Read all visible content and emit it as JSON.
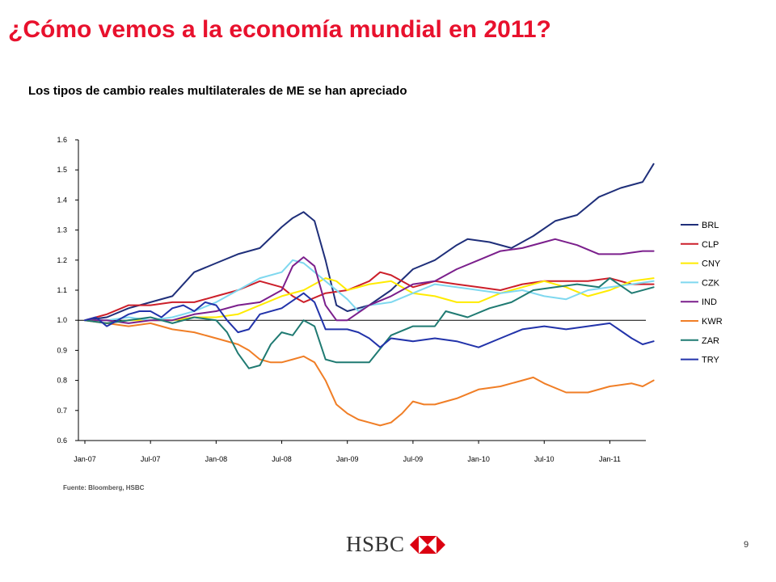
{
  "slide": {
    "title": "¿Cómo vemos a la economía mundial en 2011?",
    "subtitle": "Los tipos de cambio reales multilaterales de ME se han apreciado",
    "source": "Fuente: Bloomberg, HSBC",
    "page_number": "9",
    "logo_text": "HSBC",
    "title_color": "#e8112d"
  },
  "chart_data": {
    "type": "line",
    "title": "",
    "xlabel": "",
    "ylabel": "",
    "ylim": [
      0.6,
      1.6
    ],
    "yticks": [
      "0.6",
      "0.7",
      "0.8",
      "0.9",
      "1.0",
      "1.1",
      "1.2",
      "1.3",
      "1.4",
      "1.5",
      "1.6"
    ],
    "xticks": [
      "Jan-07",
      "Jul-07",
      "Jan-08",
      "Jul-08",
      "Jan-09",
      "Jul-09",
      "Jan-10",
      "Jul-10",
      "Jan-11"
    ],
    "x_range_months": [
      0,
      52
    ],
    "legend_position": "right",
    "series": [
      {
        "name": "BRL",
        "color": "#1f2f7a",
        "points": [
          [
            0,
            1.0
          ],
          [
            2,
            1.01
          ],
          [
            4,
            1.04
          ],
          [
            6,
            1.06
          ],
          [
            8,
            1.08
          ],
          [
            10,
            1.16
          ],
          [
            12,
            1.19
          ],
          [
            14,
            1.22
          ],
          [
            16,
            1.24
          ],
          [
            18,
            1.31
          ],
          [
            19,
            1.34
          ],
          [
            20,
            1.36
          ],
          [
            21,
            1.33
          ],
          [
            22,
            1.2
          ],
          [
            23,
            1.05
          ],
          [
            24,
            1.03
          ],
          [
            26,
            1.05
          ],
          [
            28,
            1.1
          ],
          [
            30,
            1.17
          ],
          [
            32,
            1.2
          ],
          [
            34,
            1.25
          ],
          [
            35,
            1.27
          ],
          [
            37,
            1.26
          ],
          [
            39,
            1.24
          ],
          [
            41,
            1.28
          ],
          [
            43,
            1.33
          ],
          [
            45,
            1.35
          ],
          [
            47,
            1.41
          ],
          [
            49,
            1.44
          ],
          [
            51,
            1.46
          ],
          [
            52,
            1.52
          ]
        ]
      },
      {
        "name": "CLP",
        "color": "#cc1f2a",
        "points": [
          [
            0,
            1.0
          ],
          [
            2,
            1.02
          ],
          [
            4,
            1.05
          ],
          [
            6,
            1.05
          ],
          [
            8,
            1.06
          ],
          [
            10,
            1.06
          ],
          [
            12,
            1.08
          ],
          [
            14,
            1.1
          ],
          [
            16,
            1.13
          ],
          [
            18,
            1.11
          ],
          [
            19,
            1.08
          ],
          [
            20,
            1.06
          ],
          [
            22,
            1.09
          ],
          [
            24,
            1.1
          ],
          [
            26,
            1.13
          ],
          [
            27,
            1.16
          ],
          [
            28,
            1.15
          ],
          [
            30,
            1.11
          ],
          [
            32,
            1.13
          ],
          [
            34,
            1.12
          ],
          [
            36,
            1.11
          ],
          [
            38,
            1.1
          ],
          [
            40,
            1.12
          ],
          [
            42,
            1.13
          ],
          [
            44,
            1.13
          ],
          [
            46,
            1.13
          ],
          [
            48,
            1.14
          ],
          [
            50,
            1.12
          ],
          [
            52,
            1.12
          ]
        ]
      },
      {
        "name": "CNY",
        "color": "#ffeb00",
        "points": [
          [
            0,
            1.0
          ],
          [
            2,
            0.99
          ],
          [
            4,
            1.0
          ],
          [
            6,
            1.0
          ],
          [
            8,
            1.0
          ],
          [
            10,
            1.01
          ],
          [
            12,
            1.01
          ],
          [
            14,
            1.02
          ],
          [
            16,
            1.05
          ],
          [
            18,
            1.08
          ],
          [
            20,
            1.1
          ],
          [
            22,
            1.14
          ],
          [
            23,
            1.13
          ],
          [
            24,
            1.1
          ],
          [
            26,
            1.12
          ],
          [
            28,
            1.13
          ],
          [
            30,
            1.09
          ],
          [
            32,
            1.08
          ],
          [
            34,
            1.06
          ],
          [
            36,
            1.06
          ],
          [
            38,
            1.09
          ],
          [
            40,
            1.11
          ],
          [
            42,
            1.13
          ],
          [
            44,
            1.11
          ],
          [
            46,
            1.08
          ],
          [
            48,
            1.1
          ],
          [
            50,
            1.13
          ],
          [
            52,
            1.14
          ]
        ]
      },
      {
        "name": "CZK",
        "color": "#7fd8ef",
        "points": [
          [
            0,
            1.0
          ],
          [
            2,
            1.0
          ],
          [
            4,
            1.01
          ],
          [
            6,
            1.0
          ],
          [
            8,
            1.01
          ],
          [
            10,
            1.03
          ],
          [
            12,
            1.06
          ],
          [
            14,
            1.1
          ],
          [
            16,
            1.14
          ],
          [
            18,
            1.16
          ],
          [
            19,
            1.2
          ],
          [
            20,
            1.19
          ],
          [
            22,
            1.13
          ],
          [
            24,
            1.07
          ],
          [
            25,
            1.03
          ],
          [
            26,
            1.05
          ],
          [
            28,
            1.06
          ],
          [
            30,
            1.09
          ],
          [
            32,
            1.12
          ],
          [
            34,
            1.11
          ],
          [
            36,
            1.1
          ],
          [
            38,
            1.09
          ],
          [
            40,
            1.1
          ],
          [
            42,
            1.08
          ],
          [
            44,
            1.07
          ],
          [
            46,
            1.1
          ],
          [
            48,
            1.11
          ],
          [
            50,
            1.12
          ],
          [
            52,
            1.13
          ]
        ]
      },
      {
        "name": "IND",
        "color": "#7b1f8c",
        "points": [
          [
            0,
            1.0
          ],
          [
            2,
            1.0
          ],
          [
            4,
            0.99
          ],
          [
            6,
            1.0
          ],
          [
            8,
            1.0
          ],
          [
            10,
            1.02
          ],
          [
            12,
            1.03
          ],
          [
            14,
            1.05
          ],
          [
            16,
            1.06
          ],
          [
            18,
            1.1
          ],
          [
            19,
            1.18
          ],
          [
            20,
            1.21
          ],
          [
            21,
            1.18
          ],
          [
            22,
            1.05
          ],
          [
            23,
            1.0
          ],
          [
            24,
            1.0
          ],
          [
            26,
            1.05
          ],
          [
            28,
            1.08
          ],
          [
            30,
            1.12
          ],
          [
            32,
            1.13
          ],
          [
            34,
            1.17
          ],
          [
            36,
            1.2
          ],
          [
            38,
            1.23
          ],
          [
            40,
            1.24
          ],
          [
            42,
            1.26
          ],
          [
            43,
            1.27
          ],
          [
            45,
            1.25
          ],
          [
            47,
            1.22
          ],
          [
            49,
            1.22
          ],
          [
            51,
            1.23
          ],
          [
            52,
            1.23
          ]
        ]
      },
      {
        "name": "KWR",
        "color": "#f07e26",
        "points": [
          [
            0,
            1.0
          ],
          [
            2,
            0.99
          ],
          [
            4,
            0.98
          ],
          [
            6,
            0.99
          ],
          [
            8,
            0.97
          ],
          [
            10,
            0.96
          ],
          [
            12,
            0.94
          ],
          [
            14,
            0.92
          ],
          [
            15,
            0.9
          ],
          [
            16,
            0.87
          ],
          [
            17,
            0.86
          ],
          [
            18,
            0.86
          ],
          [
            19,
            0.87
          ],
          [
            20,
            0.88
          ],
          [
            21,
            0.86
          ],
          [
            22,
            0.8
          ],
          [
            23,
            0.72
          ],
          [
            24,
            0.69
          ],
          [
            25,
            0.67
          ],
          [
            26,
            0.66
          ],
          [
            27,
            0.65
          ],
          [
            28,
            0.66
          ],
          [
            29,
            0.69
          ],
          [
            30,
            0.73
          ],
          [
            31,
            0.72
          ],
          [
            32,
            0.72
          ],
          [
            34,
            0.74
          ],
          [
            36,
            0.77
          ],
          [
            38,
            0.78
          ],
          [
            40,
            0.8
          ],
          [
            41,
            0.81
          ],
          [
            42,
            0.79
          ],
          [
            44,
            0.76
          ],
          [
            46,
            0.76
          ],
          [
            48,
            0.78
          ],
          [
            50,
            0.79
          ],
          [
            51,
            0.78
          ],
          [
            52,
            0.8
          ]
        ]
      },
      {
        "name": "ZAR",
        "color": "#1f7a72",
        "points": [
          [
            0,
            1.0
          ],
          [
            2,
            0.99
          ],
          [
            4,
            1.0
          ],
          [
            6,
            1.01
          ],
          [
            8,
            0.99
          ],
          [
            10,
            1.01
          ],
          [
            12,
            1.0
          ],
          [
            13,
            0.96
          ],
          [
            14,
            0.89
          ],
          [
            15,
            0.84
          ],
          [
            16,
            0.85
          ],
          [
            17,
            0.92
          ],
          [
            18,
            0.96
          ],
          [
            19,
            0.95
          ],
          [
            20,
            1.0
          ],
          [
            21,
            0.98
          ],
          [
            22,
            0.87
          ],
          [
            23,
            0.86
          ],
          [
            24,
            0.86
          ],
          [
            26,
            0.86
          ],
          [
            28,
            0.95
          ],
          [
            30,
            0.98
          ],
          [
            32,
            0.98
          ],
          [
            33,
            1.03
          ],
          [
            35,
            1.01
          ],
          [
            37,
            1.04
          ],
          [
            39,
            1.06
          ],
          [
            41,
            1.1
          ],
          [
            43,
            1.11
          ],
          [
            45,
            1.12
          ],
          [
            47,
            1.11
          ],
          [
            48,
            1.14
          ],
          [
            50,
            1.09
          ],
          [
            52,
            1.11
          ]
        ]
      },
      {
        "name": "TRY",
        "color": "#2233aa",
        "points": [
          [
            0,
            1.0
          ],
          [
            1,
            1.01
          ],
          [
            2,
            0.98
          ],
          [
            3,
            1.0
          ],
          [
            4,
            1.02
          ],
          [
            5,
            1.03
          ],
          [
            6,
            1.03
          ],
          [
            7,
            1.01
          ],
          [
            8,
            1.04
          ],
          [
            9,
            1.05
          ],
          [
            10,
            1.03
          ],
          [
            11,
            1.06
          ],
          [
            12,
            1.05
          ],
          [
            13,
            1.0
          ],
          [
            14,
            0.96
          ],
          [
            15,
            0.97
          ],
          [
            16,
            1.02
          ],
          [
            18,
            1.04
          ],
          [
            20,
            1.09
          ],
          [
            21,
            1.06
          ],
          [
            22,
            0.97
          ],
          [
            24,
            0.97
          ],
          [
            25,
            0.96
          ],
          [
            26,
            0.94
          ],
          [
            27,
            0.91
          ],
          [
            28,
            0.94
          ],
          [
            30,
            0.93
          ],
          [
            32,
            0.94
          ],
          [
            34,
            0.93
          ],
          [
            36,
            0.91
          ],
          [
            38,
            0.94
          ],
          [
            40,
            0.97
          ],
          [
            42,
            0.98
          ],
          [
            44,
            0.97
          ],
          [
            46,
            0.98
          ],
          [
            48,
            0.99
          ],
          [
            50,
            0.94
          ],
          [
            51,
            0.92
          ],
          [
            52,
            0.93
          ]
        ]
      }
    ]
  }
}
